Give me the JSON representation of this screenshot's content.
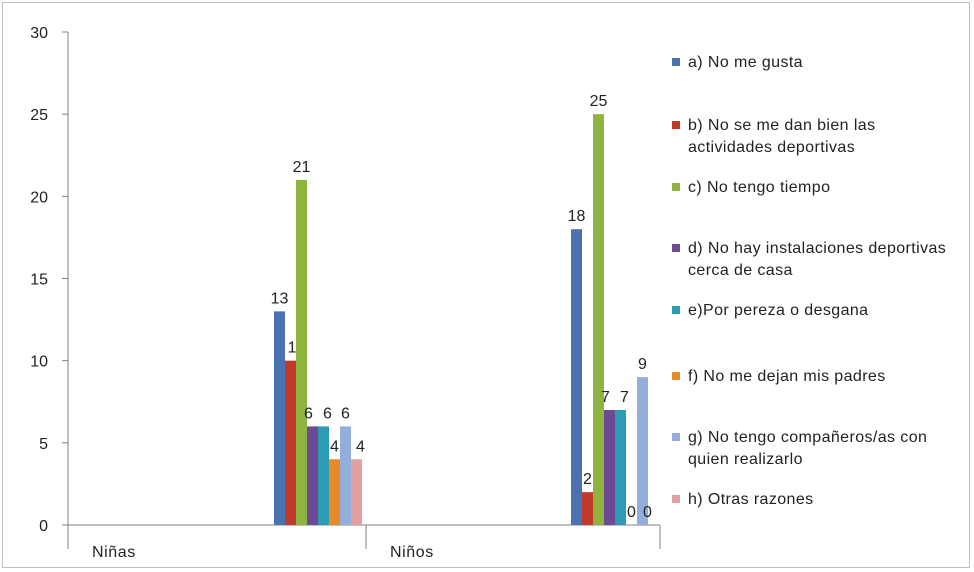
{
  "chart_data": {
    "type": "bar",
    "categories": [
      "Niñas",
      "Niños"
    ],
    "ylim": [
      0,
      30
    ],
    "yticks": [
      0,
      5,
      10,
      15,
      20,
      25,
      30
    ],
    "legend_position": "right",
    "grid": false,
    "series": [
      {
        "name": "a) No me gusta",
        "color": "#4a72b0",
        "values": [
          13,
          18
        ],
        "labels": [
          "13",
          "18"
        ]
      },
      {
        "name": "b) No se me dan bien las actividades deportivas",
        "color": "#c0392b",
        "values": [
          10,
          2
        ],
        "labels": [
          "10",
          "2"
        ]
      },
      {
        "name": "c) No tengo tiempo",
        "color": "#8fb33f",
        "values": [
          21,
          25
        ],
        "labels": [
          "21",
          "25"
        ]
      },
      {
        "name": "d) No hay instalaciones deportivas cerca de casa",
        "color": "#6c4b94",
        "values": [
          6,
          7
        ],
        "labels": [
          "6",
          "7"
        ]
      },
      {
        "name": "e)Por pereza o desgana",
        "color": "#2e9bb5",
        "values": [
          6,
          7
        ],
        "labels": [
          "6",
          "7"
        ]
      },
      {
        "name": "f) No me dejan mis padres",
        "color": "#e8892a",
        "values": [
          4,
          0
        ],
        "labels": [
          "4",
          "0"
        ]
      },
      {
        "name": "g) No tengo compañeros/as con quien realizarlo",
        "color": "#93aedb",
        "values": [
          6,
          9
        ],
        "labels": [
          "6",
          "9"
        ]
      },
      {
        "name": "h) Otras razones",
        "color": "#e3a0a0",
        "values": [
          4,
          0
        ],
        "labels": [
          "4",
          "0"
        ]
      }
    ]
  }
}
